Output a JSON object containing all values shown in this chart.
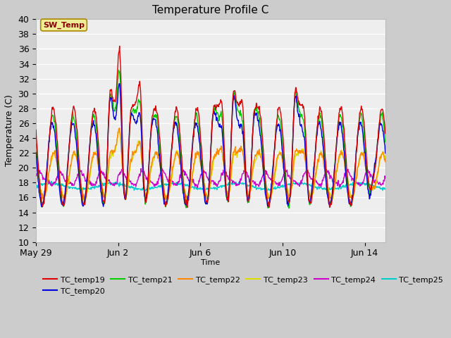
{
  "title": "Temperature Profile C",
  "ylabel": "Temperature (C)",
  "xlabel": "Time",
  "ylim": [
    10,
    40
  ],
  "yticks": [
    10,
    12,
    14,
    16,
    18,
    20,
    22,
    24,
    26,
    28,
    30,
    32,
    34,
    36,
    38,
    40
  ],
  "series_colors": {
    "TC_temp19": "#dd0000",
    "TC_temp20": "#0000dd",
    "TC_temp21": "#00cc00",
    "TC_temp22": "#ff8800",
    "TC_temp23": "#dddd00",
    "TC_temp24": "#cc00cc",
    "TC_temp25": "#00cccc"
  },
  "SW_Temp_box_facecolor": "#eeee99",
  "SW_Temp_box_edgecolor": "#aa8800",
  "SW_Temp_text_color": "#880000",
  "x_tick_labels": [
    "May 29",
    "Jun 2",
    "Jun 6",
    "Jun 10",
    "Jun 14"
  ],
  "x_tick_positions": [
    0,
    4,
    8,
    12,
    16
  ],
  "n_days": 17,
  "fig_bg": "#cccccc",
  "plot_bg": "#eeeeee"
}
